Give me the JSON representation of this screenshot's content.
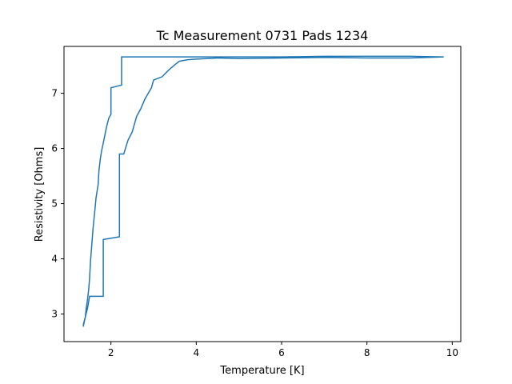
{
  "chart_data": {
    "type": "line",
    "title": "Tc Measurement 0731 Pads 1234",
    "xlabel": "Temperature [K]",
    "ylabel": "Resistivity [Ohms]",
    "xlim": [
      0.9,
      10.2
    ],
    "ylim": [
      2.5,
      7.85
    ],
    "x_ticks": [
      2,
      4,
      6,
      8,
      10
    ],
    "y_ticks": [
      3,
      4,
      5,
      6,
      7
    ],
    "x_tick_labels": [
      "2",
      "4",
      "6",
      "8",
      "10"
    ],
    "y_tick_labels": [
      "3",
      "4",
      "5",
      "6",
      "7"
    ],
    "grid": false,
    "series": [
      {
        "color": "#1f77b4",
        "x": [
          1.35,
          1.4,
          1.42,
          1.45,
          1.48,
          1.5,
          1.52,
          1.55,
          1.58,
          1.62,
          1.65,
          1.7,
          1.72,
          1.75,
          1.78,
          1.82,
          1.86,
          1.9,
          1.95,
          2.0,
          2.0,
          2.25,
          2.25,
          2.4,
          3.0,
          4.0,
          5.0,
          6.0,
          7.0,
          8.0,
          9.0,
          9.8,
          9.0,
          8.0,
          7.0,
          6.0,
          5.0,
          4.5,
          4.0,
          3.8,
          3.6,
          3.5,
          3.35,
          3.2,
          3.0,
          2.95,
          2.8,
          2.7,
          2.6,
          2.5,
          2.4,
          2.3,
          2.2,
          2.2,
          1.82,
          1.82,
          1.5,
          1.45,
          1.4,
          1.35
        ],
        "y": [
          2.77,
          2.95,
          3.1,
          3.25,
          3.45,
          3.65,
          3.95,
          4.25,
          4.55,
          4.85,
          5.1,
          5.35,
          5.6,
          5.8,
          5.95,
          6.1,
          6.25,
          6.4,
          6.55,
          6.62,
          7.1,
          7.15,
          7.66,
          7.66,
          7.66,
          7.66,
          7.66,
          7.66,
          7.67,
          7.67,
          7.67,
          7.66,
          7.64,
          7.64,
          7.65,
          7.64,
          7.63,
          7.64,
          7.62,
          7.61,
          7.58,
          7.52,
          7.42,
          7.3,
          7.24,
          7.1,
          6.9,
          6.72,
          6.58,
          6.3,
          6.15,
          5.9,
          5.9,
          4.4,
          4.35,
          3.32,
          3.32,
          3.1,
          2.95,
          2.8
        ]
      }
    ]
  }
}
